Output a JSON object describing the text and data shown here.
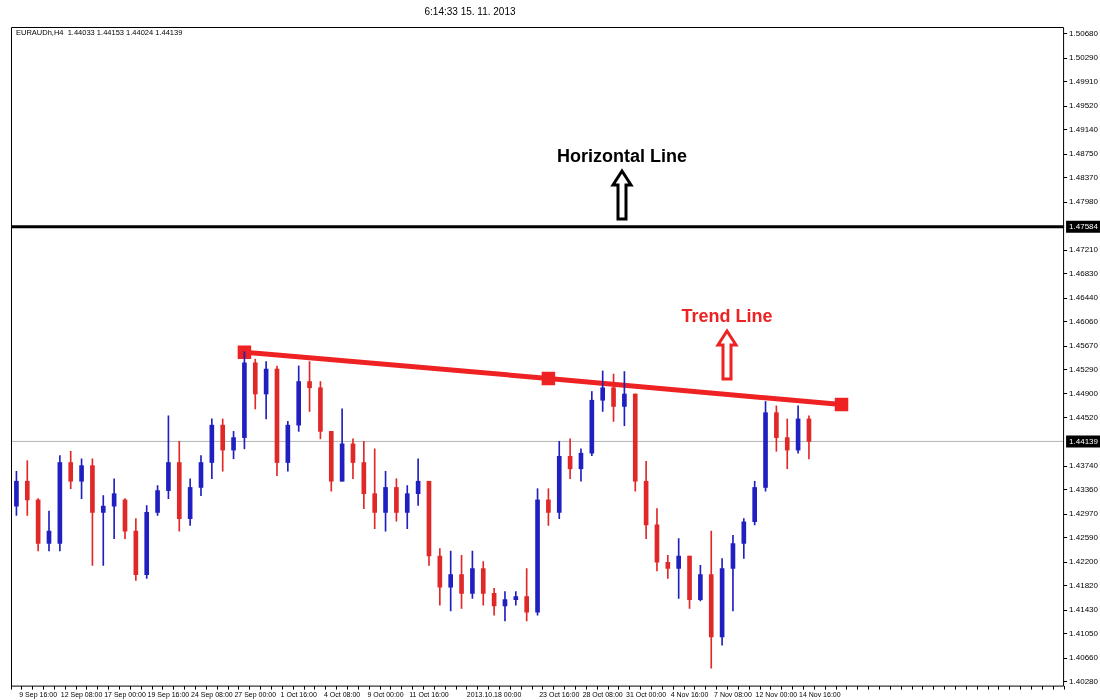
{
  "chart_data": {
    "type": "candlestick",
    "title": "6:14:33 15. 11. 2013",
    "categories": [
      null,
      null,
      "9 Sep 16:00",
      null,
      null,
      null,
      "12 Sep 08:00",
      null,
      null,
      null,
      "17 Sep 00:00",
      null,
      null,
      null,
      "19 Sep 16:00",
      null,
      null,
      null,
      "24 Sep 08:00",
      null,
      null,
      null,
      "27 Sep 00:00",
      null,
      null,
      null,
      "1 Oct 16:00",
      null,
      null,
      null,
      "4 Oct 08:00",
      null,
      null,
      null,
      "9 Oct 00:00",
      null,
      null,
      null,
      "11 Oct 16:00",
      null,
      null,
      null,
      null,
      null,
      "2013.10.18 00:00",
      null,
      null,
      null,
      null,
      null,
      "23 Oct 16:00",
      null,
      null,
      null,
      "28 Oct 08:00",
      null,
      null,
      null,
      "31 Oct 00:00",
      null,
      null,
      null,
      "4 Nov 16:00",
      null,
      null,
      null,
      "7 Nov 08:00",
      null,
      null,
      null,
      "12 Nov 00:00",
      null,
      null,
      null,
      "14 Nov 16:00",
      null,
      null,
      null,
      null,
      null,
      null,
      null,
      null,
      null,
      null,
      null,
      null,
      null,
      null,
      null,
      null,
      null,
      null,
      null,
      null,
      null,
      null
    ],
    "ohlc": [
      [
        1.431,
        1.4366,
        1.4295,
        1.435
      ],
      [
        1.435,
        1.4383,
        1.4295,
        1.432
      ],
      [
        1.432,
        1.4322,
        1.4238,
        1.425
      ],
      [
        1.425,
        1.4302,
        1.4238,
        1.427
      ],
      [
        1.425,
        1.4391,
        1.4238,
        1.438
      ],
      [
        1.438,
        1.4398,
        1.4338,
        1.435
      ],
      [
        1.435,
        1.4386,
        1.4322,
        1.4375
      ],
      [
        1.4375,
        1.4386,
        1.4215,
        1.43
      ],
      [
        1.43,
        1.4327,
        1.4215,
        1.431
      ],
      [
        1.431,
        1.4354,
        1.4258,
        1.433
      ],
      [
        1.432,
        1.4322,
        1.4258,
        1.427
      ],
      [
        1.427,
        1.429,
        1.4191,
        1.42
      ],
      [
        1.42,
        1.4311,
        1.4194,
        1.43
      ],
      [
        1.43,
        1.4343,
        1.4295,
        1.4335
      ],
      [
        1.4335,
        1.4455,
        1.4322,
        1.438
      ],
      [
        1.438,
        1.4414,
        1.427,
        1.429
      ],
      [
        1.429,
        1.4354,
        1.4279,
        1.434
      ],
      [
        1.434,
        1.4391,
        1.4327,
        1.438
      ],
      [
        1.438,
        1.445,
        1.4354,
        1.444
      ],
      [
        1.444,
        1.445,
        1.4366,
        1.44
      ],
      [
        1.44,
        1.443,
        1.4386,
        1.442
      ],
      [
        1.442,
        1.4558,
        1.4402,
        1.454
      ],
      [
        1.454,
        1.4546,
        1.4466,
        1.449
      ],
      [
        1.449,
        1.4542,
        1.445,
        1.453
      ],
      [
        1.453,
        1.4535,
        1.4359,
        1.438
      ],
      [
        1.438,
        1.4446,
        1.4366,
        1.444
      ],
      [
        1.444,
        1.4535,
        1.443,
        1.451
      ],
      [
        1.451,
        1.4542,
        1.4462,
        1.45
      ],
      [
        1.45,
        1.451,
        1.4418,
        1.443
      ],
      [
        1.443,
        1.443,
        1.4334,
        1.435
      ],
      [
        1.435,
        1.4466,
        1.435,
        1.441
      ],
      [
        1.441,
        1.4418,
        1.4354,
        1.438
      ],
      [
        1.438,
        1.4414,
        1.4306,
        1.433
      ],
      [
        1.433,
        1.4402,
        1.4274,
        1.43
      ],
      [
        1.43,
        1.4366,
        1.427,
        1.434
      ],
      [
        1.434,
        1.4354,
        1.4286,
        1.43
      ],
      [
        1.43,
        1.4343,
        1.4274,
        1.433
      ],
      [
        1.433,
        1.4386,
        1.4311,
        1.435
      ],
      [
        1.435,
        1.435,
        1.4215,
        1.423
      ],
      [
        1.423,
        1.4242,
        1.4151,
        1.418
      ],
      [
        1.418,
        1.4238,
        1.4142,
        1.42
      ],
      [
        1.42,
        1.4231,
        1.4146,
        1.417
      ],
      [
        1.417,
        1.4238,
        1.4162,
        1.421
      ],
      [
        1.421,
        1.4221,
        1.4151,
        1.417
      ],
      [
        1.417,
        1.4178,
        1.4135,
        1.415
      ],
      [
        1.415,
        1.4173,
        1.4126,
        1.416
      ],
      [
        1.416,
        1.4173,
        1.4151,
        1.4165
      ],
      [
        1.4165,
        1.421,
        1.4126,
        1.414
      ],
      [
        1.414,
        1.4338,
        1.4135,
        1.432
      ],
      [
        1.432,
        1.4338,
        1.4279,
        1.43
      ],
      [
        1.43,
        1.4414,
        1.429,
        1.439
      ],
      [
        1.439,
        1.4418,
        1.4354,
        1.437
      ],
      [
        1.437,
        1.4402,
        1.435,
        1.4395
      ],
      [
        1.4395,
        1.4494,
        1.4391,
        1.448
      ],
      [
        1.448,
        1.4527,
        1.4462,
        1.45
      ],
      [
        1.45,
        1.4522,
        1.4446,
        1.447
      ],
      [
        1.447,
        1.4526,
        1.4439,
        1.449
      ],
      [
        1.449,
        1.449,
        1.4334,
        1.435
      ],
      [
        1.435,
        1.4382,
        1.4258,
        1.428
      ],
      [
        1.428,
        1.4306,
        1.4206,
        1.422
      ],
      [
        1.422,
        1.4231,
        1.4194,
        1.421
      ],
      [
        1.421,
        1.4258,
        1.4162,
        1.423
      ],
      [
        1.423,
        1.423,
        1.4146,
        1.416
      ],
      [
        1.416,
        1.4215,
        1.4158,
        1.42
      ],
      [
        1.42,
        1.427,
        1.405,
        1.41
      ],
      [
        1.41,
        1.4226,
        1.4087,
        1.421
      ],
      [
        1.421,
        1.4263,
        1.4142,
        1.425
      ],
      [
        1.425,
        1.429,
        1.4226,
        1.4285
      ],
      [
        1.4285,
        1.435,
        1.428,
        1.434
      ],
      [
        1.434,
        1.4478,
        1.4334,
        1.446
      ],
      [
        1.446,
        1.4471,
        1.4398,
        1.442
      ],
      [
        1.442,
        1.445,
        1.437,
        1.44
      ],
      [
        1.44,
        1.4471,
        1.4395,
        1.445
      ],
      [
        1.445,
        1.4455,
        1.4386,
        1.44139
      ],
      null,
      null,
      null,
      null,
      null,
      null,
      null,
      null,
      null,
      null,
      null,
      null,
      null,
      null,
      null,
      null,
      null,
      null,
      null,
      null,
      null,
      null,
      null
    ],
    "colors": [
      "#2020c0",
      "#e02828",
      "#e02828",
      "#2020c0",
      "#2020c0",
      "#e02828",
      "#2020c0",
      "#e02828",
      "#2020c0",
      "#2020c0",
      "#e02828",
      "#e02828",
      "#2020c0",
      "#2020c0",
      "#2020c0",
      "#e02828",
      "#2020c0",
      "#2020c0",
      "#2020c0",
      "#e02828",
      "#2020c0",
      "#2020c0",
      "#e02828",
      "#2020c0",
      "#e02828",
      "#2020c0",
      "#2020c0",
      "#e02828",
      "#e02828",
      "#e02828",
      "#2020c0",
      "#e02828",
      "#e02828",
      "#e02828",
      "#2020c0",
      "#e02828",
      "#2020c0",
      "#2020c0",
      "#e02828",
      "#e02828",
      "#2020c0",
      "#e02828",
      "#2020c0",
      "#e02828",
      "#e02828",
      "#2020c0",
      "#2020c0",
      "#e02828",
      "#2020c0",
      "#e02828",
      "#2020c0",
      "#e02828",
      "#2020c0",
      "#2020c0",
      "#2020c0",
      "#e02828",
      "#2020c0",
      "#e02828",
      "#e02828",
      "#e02828",
      "#e02828",
      "#2020c0",
      "#e02828",
      "#2020c0",
      "#e02828",
      "#2020c0",
      "#2020c0",
      "#2020c0",
      "#2020c0",
      "#2020c0",
      "#e02828",
      "#e02828",
      "#2020c0",
      "#e02828",
      null,
      null,
      null,
      null,
      null,
      null,
      null,
      null,
      null,
      null,
      null,
      null,
      null,
      null,
      null,
      null,
      null,
      null,
      null,
      null,
      null,
      null,
      null
    ],
    "series": [
      {
        "type": "line",
        "color": "#ee2222",
        "values": [
          null,
          null,
          null,
          null,
          null,
          null,
          null,
          null,
          null,
          null,
          null,
          null,
          null,
          null,
          null,
          null,
          null,
          null,
          null,
          null,
          null,
          1.4557,
          null,
          null,
          null,
          null,
          null,
          null,
          null,
          null,
          null,
          null,
          null,
          null,
          null,
          null,
          null,
          null,
          null,
          null,
          null,
          null,
          null,
          null,
          null,
          null,
          null,
          null,
          null,
          1.4515,
          null,
          null,
          null,
          null,
          null,
          null,
          null,
          null,
          null,
          null,
          null,
          null,
          null,
          null,
          null,
          null,
          null,
          null,
          null,
          null,
          null,
          null,
          null,
          null,
          null,
          null,
          1.4473,
          null,
          null,
          null,
          null,
          null,
          null,
          null,
          null,
          null,
          null,
          null,
          null,
          null,
          null,
          null,
          null,
          null,
          null,
          null,
          null
        ]
      }
    ],
    "marker": "square",
    "line_style": "solid",
    "ylim": [
      1.4022,
      1.5079
    ],
    "yticks": [
      {
        "value": 1.5068,
        "label": "1.50680"
      },
      {
        "value": 1.5029,
        "label": "1.50290"
      },
      {
        "value": 1.4991,
        "label": "1.49910"
      },
      {
        "value": 1.4952,
        "label": "1.49520"
      },
      {
        "value": 1.4914,
        "label": "1.49140"
      },
      {
        "value": 1.4875,
        "label": "1.48750"
      },
      {
        "value": 1.4837,
        "label": "1.48370"
      },
      {
        "value": 1.4798,
        "label": "1.47980"
      },
      {
        "value": 1.4721,
        "label": "1.47210"
      },
      {
        "value": 1.4683,
        "label": "1.46830"
      },
      {
        "value": 1.4644,
        "label": "1.46440"
      },
      {
        "value": 1.4606,
        "label": "1.46060"
      },
      {
        "value": 1.4567,
        "label": "1.45670"
      },
      {
        "value": 1.4529,
        "label": "1.45290"
      },
      {
        "value": 1.449,
        "label": "1.44900"
      },
      {
        "value": 1.4452,
        "label": "1.44520"
      },
      {
        "value": 1.4374,
        "label": "1.43740"
      },
      {
        "value": 1.4336,
        "label": "1.43360"
      },
      {
        "value": 1.4297,
        "label": "1.42970"
      },
      {
        "value": 1.4259,
        "label": "1.42590"
      },
      {
        "value": 1.422,
        "label": "1.42200"
      },
      {
        "value": 1.4182,
        "label": "1.41820"
      },
      {
        "value": 1.4143,
        "label": "1.41430"
      },
      {
        "value": 1.4105,
        "label": "1.41050"
      },
      {
        "value": 1.4066,
        "label": "1.40660"
      },
      {
        "value": 1.4028,
        "label": "1.40280"
      }
    ],
    "ref_lines": [
      {
        "axis": "y",
        "value": 1.47584,
        "label": "1.47584",
        "color": "#000000"
      },
      {
        "axis": "y",
        "value": 1.44139,
        "label": "1.44139",
        "color": "#b4b4b4"
      }
    ],
    "annotations": [
      "Horizontal Line",
      "Trend Line",
      "EURAUDh,H4  1.44033 1.44153 1.44024 1.44139"
    ],
    "grid": false,
    "legend": false
  }
}
